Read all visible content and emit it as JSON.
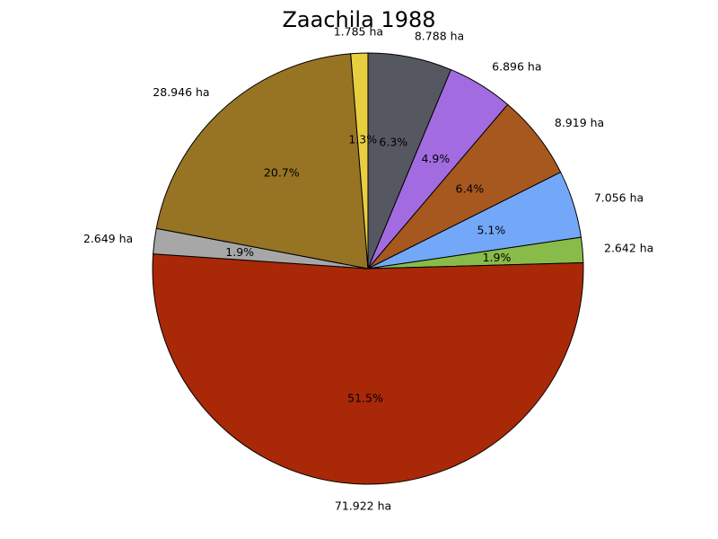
{
  "chart_data": {
    "type": "pie",
    "title": "Zaachila 1988",
    "slices": [
      {
        "value": 8.788,
        "label": "8.788 ha",
        "pct_label": "6.3%",
        "color": "#555860"
      },
      {
        "value": 6.896,
        "label": "6.896 ha",
        "pct_label": "4.9%",
        "color": "#a26ce0"
      },
      {
        "value": 8.919,
        "label": "8.919 ha",
        "pct_label": "6.4%",
        "color": "#a6581f"
      },
      {
        "value": 7.056,
        "label": "7.056 ha",
        "pct_label": "5.1%",
        "color": "#73a8f8"
      },
      {
        "value": 2.642,
        "label": "2.642 ha",
        "pct_label": "1.9%",
        "color": "#89bb4a"
      },
      {
        "value": 71.922,
        "label": "71.922 ha",
        "pct_label": "51.5%",
        "color": "#a92808"
      },
      {
        "value": 2.649,
        "label": "2.649 ha",
        "pct_label": "1.9%",
        "color": "#a7a7a7"
      },
      {
        "value": 28.946,
        "label": "28.946 ha",
        "pct_label": "20.7%",
        "color": "#967424"
      },
      {
        "value": 1.785,
        "label": "1.785 ha",
        "pct_label": "1.3%",
        "color": "#e8cf40"
      }
    ],
    "start_angle_deg": 90,
    "direction": "clockwise",
    "edge_color": "#000000"
  }
}
